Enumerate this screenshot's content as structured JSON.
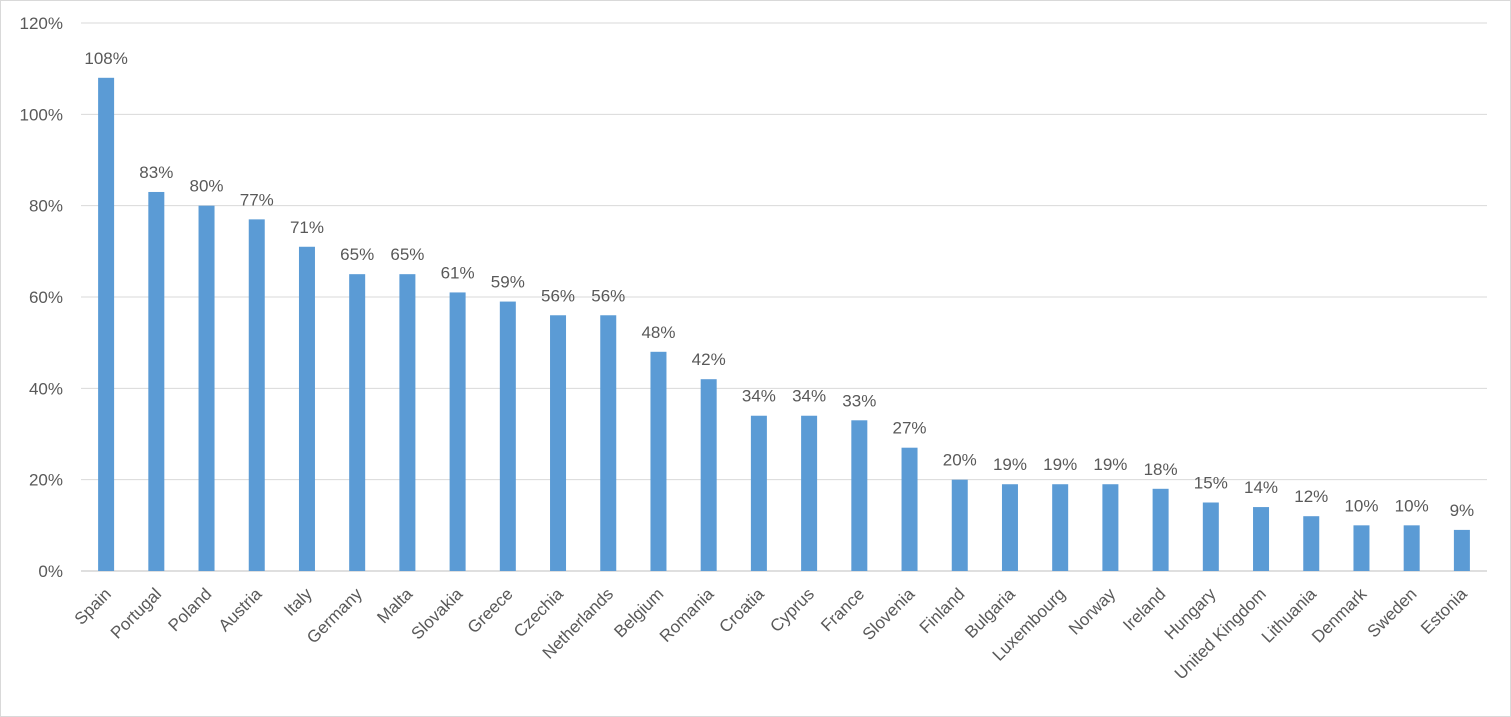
{
  "chart_data": {
    "type": "bar",
    "title": "",
    "xlabel": "",
    "ylabel": "",
    "ylim": [
      0,
      120
    ],
    "y_ticks": [
      0,
      20,
      40,
      60,
      80,
      100,
      120
    ],
    "y_tick_labels": [
      "0%",
      "20%",
      "40%",
      "60%",
      "80%",
      "100%",
      "120%"
    ],
    "grid": true,
    "legend": "none",
    "bar_color": "#5b9bd5",
    "categories": [
      "Spain",
      "Portugal",
      "Poland",
      "Austria",
      "Italy",
      "Germany",
      "Malta",
      "Slovakia",
      "Greece",
      "Czechia",
      "Netherlands",
      "Belgium",
      "Romania",
      "Croatia",
      "Cyprus",
      "France",
      "Slovenia",
      "Finland",
      "Bulgaria",
      "Luxembourg",
      "Norway",
      "Ireland",
      "Hungary",
      "United Kingdom",
      "Lithuania",
      "Denmark",
      "Sweden",
      "Estonia"
    ],
    "values": [
      108,
      83,
      80,
      77,
      71,
      65,
      65,
      61,
      59,
      56,
      56,
      48,
      42,
      34,
      34,
      33,
      27,
      20,
      19,
      19,
      19,
      18,
      15,
      14,
      12,
      10,
      10,
      9
    ],
    "data_labels": [
      "108%",
      "83%",
      "80%",
      "77%",
      "71%",
      "65%",
      "65%",
      "61%",
      "59%",
      "56%",
      "56%",
      "48%",
      "42%",
      "34%",
      "34%",
      "33%",
      "27%",
      "20%",
      "19%",
      "19%",
      "19%",
      "18%",
      "15%",
      "14%",
      "12%",
      "10%",
      "10%",
      "9%"
    ]
  }
}
